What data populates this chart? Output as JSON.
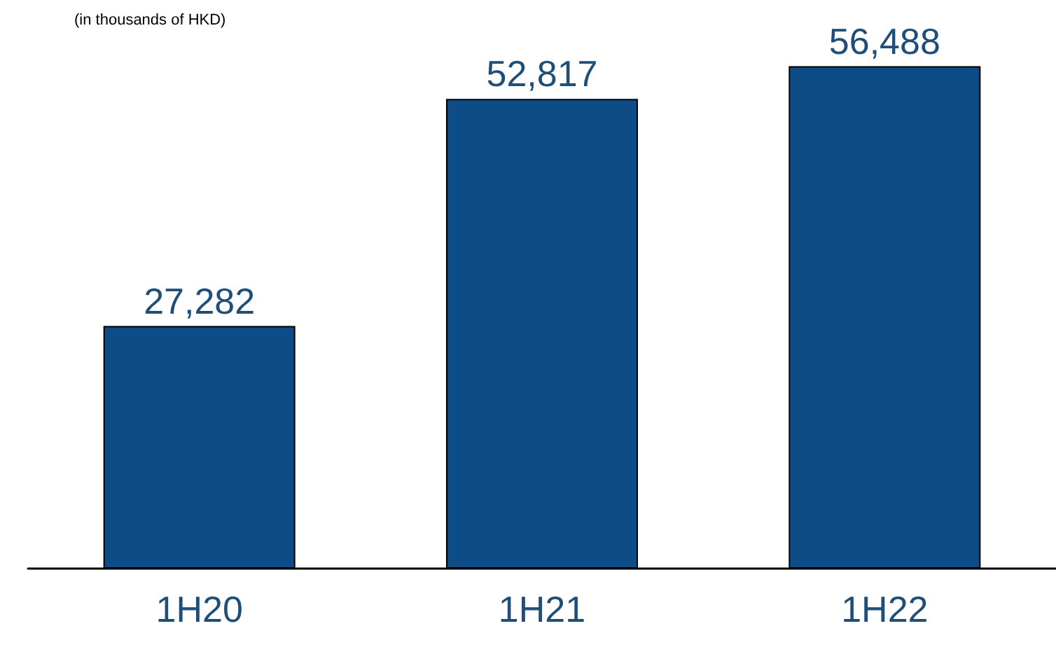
{
  "chart_data": {
    "type": "bar",
    "title": "(in thousands of HKD)",
    "categories": [
      "1H20",
      "1H21",
      "1H22"
    ],
    "values": [
      27282,
      52817,
      56488
    ],
    "value_labels": [
      "27,282",
      "52,817",
      "56,488"
    ],
    "color": "#0d4c87",
    "grid": false
  }
}
